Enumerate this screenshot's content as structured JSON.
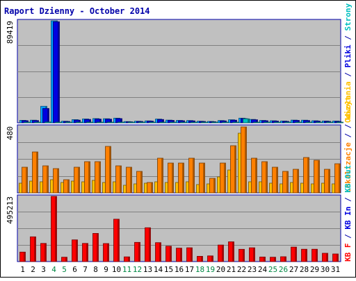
{
  "chart_data": {
    "type": "bar",
    "title": "Raport Dzienny -  October 2014",
    "categories": [
      "1",
      "2",
      "3",
      "4",
      "5",
      "6",
      "7",
      "8",
      "9",
      "10",
      "11",
      "12",
      "13",
      "14",
      "15",
      "16",
      "17",
      "18",
      "19",
      "20",
      "21",
      "22",
      "23",
      "24",
      "25",
      "26",
      "27",
      "28",
      "29",
      "30",
      "31"
    ],
    "weekend_days": [
      "4",
      "5",
      "11",
      "12",
      "18",
      "19",
      "25",
      "26"
    ],
    "colors": {
      "background": "#c0c0c0",
      "border": "#0000aa",
      "title": "#0000aa",
      "weekday_label": "#000000",
      "weekend_label": "#008844",
      "hits": "#00a0ff",
      "files": "#0000e0",
      "pages": "#00c0c0",
      "visits": "#ffc000",
      "sites": "#ff8000",
      "kbytes": "#ff0000"
    },
    "panels": [
      {
        "id": "top",
        "ymax_label": "89419",
        "ylim": [
          0,
          89419
        ],
        "series": [
          {
            "key": "hits",
            "values": [
              2200,
              2300,
              14500,
              89419,
              1400,
              2800,
              3400,
              3700,
              3600,
              4100,
              1100,
              1400,
              1700,
              3300,
              2400,
              2100,
              2000,
              1400,
              1200,
              2000,
              2700,
              4100,
              3000,
              2100,
              1800,
              1600,
              2400,
              2300,
              1800,
              1600,
              1500
            ]
          },
          {
            "key": "files",
            "values": [
              1900,
              2000,
              12600,
              88600,
              1200,
              2400,
              3000,
              3300,
              3200,
              3700,
              900,
              1200,
              1500,
              2900,
              2100,
              1800,
              1700,
              1200,
              1000,
              1700,
              2300,
              3700,
              2700,
              1800,
              1500,
              1300,
              2100,
              2000,
              1500,
              1300,
              1200
            ]
          },
          {
            "key": "pages",
            "values": [
              300,
              300,
              700,
              500,
              200,
              300,
              400,
              500,
              500,
              400,
              200,
              200,
              200,
              400,
              300,
              300,
              300,
              200,
              200,
              300,
              500,
              3500,
              500,
              300,
              200,
              200,
              300,
              300,
              200,
              200,
              200
            ]
          }
        ],
        "legend": [
          {
            "label": "Odwołania",
            "key": "visits"
          },
          {
            "label": "Pliki",
            "key": "files"
          },
          {
            "label": "Strony",
            "key": "pages"
          }
        ]
      },
      {
        "id": "middle",
        "ymax_label": "480",
        "ylim": [
          0,
          480
        ],
        "series": [
          {
            "key": "visits",
            "values": [
              70,
              85,
              80,
              95,
              75,
              85,
              80,
              90,
              75,
              80,
              55,
              65,
              70,
              80,
              75,
              75,
              80,
              60,
              65,
              115,
              165,
              430,
              80,
              80,
              70,
              65,
              75,
              70,
              65,
              70,
              65
            ]
          },
          {
            "key": "sites",
            "values": [
              185,
              295,
              195,
              175,
              95,
              185,
              225,
              225,
              335,
              195,
              185,
              155,
              75,
              250,
              215,
              215,
              250,
              215,
              105,
              215,
              340,
              475,
              250,
              225,
              185,
              155,
              170,
              255,
              235,
              170,
              210
            ]
          }
        ],
        "legend": [
          {
            "label": "Lokalizacje",
            "key": "sites"
          },
          {
            "label": "/",
            "key": "border"
          },
          {
            "label": "Wizyt",
            "key": "visits"
          }
        ]
      },
      {
        "id": "bottom",
        "ymax_label": "495213",
        "ylim": [
          0,
          495213
        ],
        "series": [
          {
            "key": "kbytes",
            "values": [
              72000,
              188000,
              138000,
              495213,
              33000,
              165000,
              138000,
              214000,
              137000,
              322000,
              36000,
              146000,
              257000,
              144000,
              117000,
              102000,
              105000,
              40000,
              43000,
              126000,
              150000,
              93000,
              105000,
              35000,
              33000,
              37000,
              110000,
              94000,
              94000,
              63000,
              58000
            ]
          }
        ],
        "legend": [
          {
            "label": "KB F",
            "key": "kbytes"
          },
          {
            "label": "KB In",
            "key": "files"
          },
          {
            "label": "KB Out",
            "key": "pages"
          }
        ]
      }
    ]
  }
}
